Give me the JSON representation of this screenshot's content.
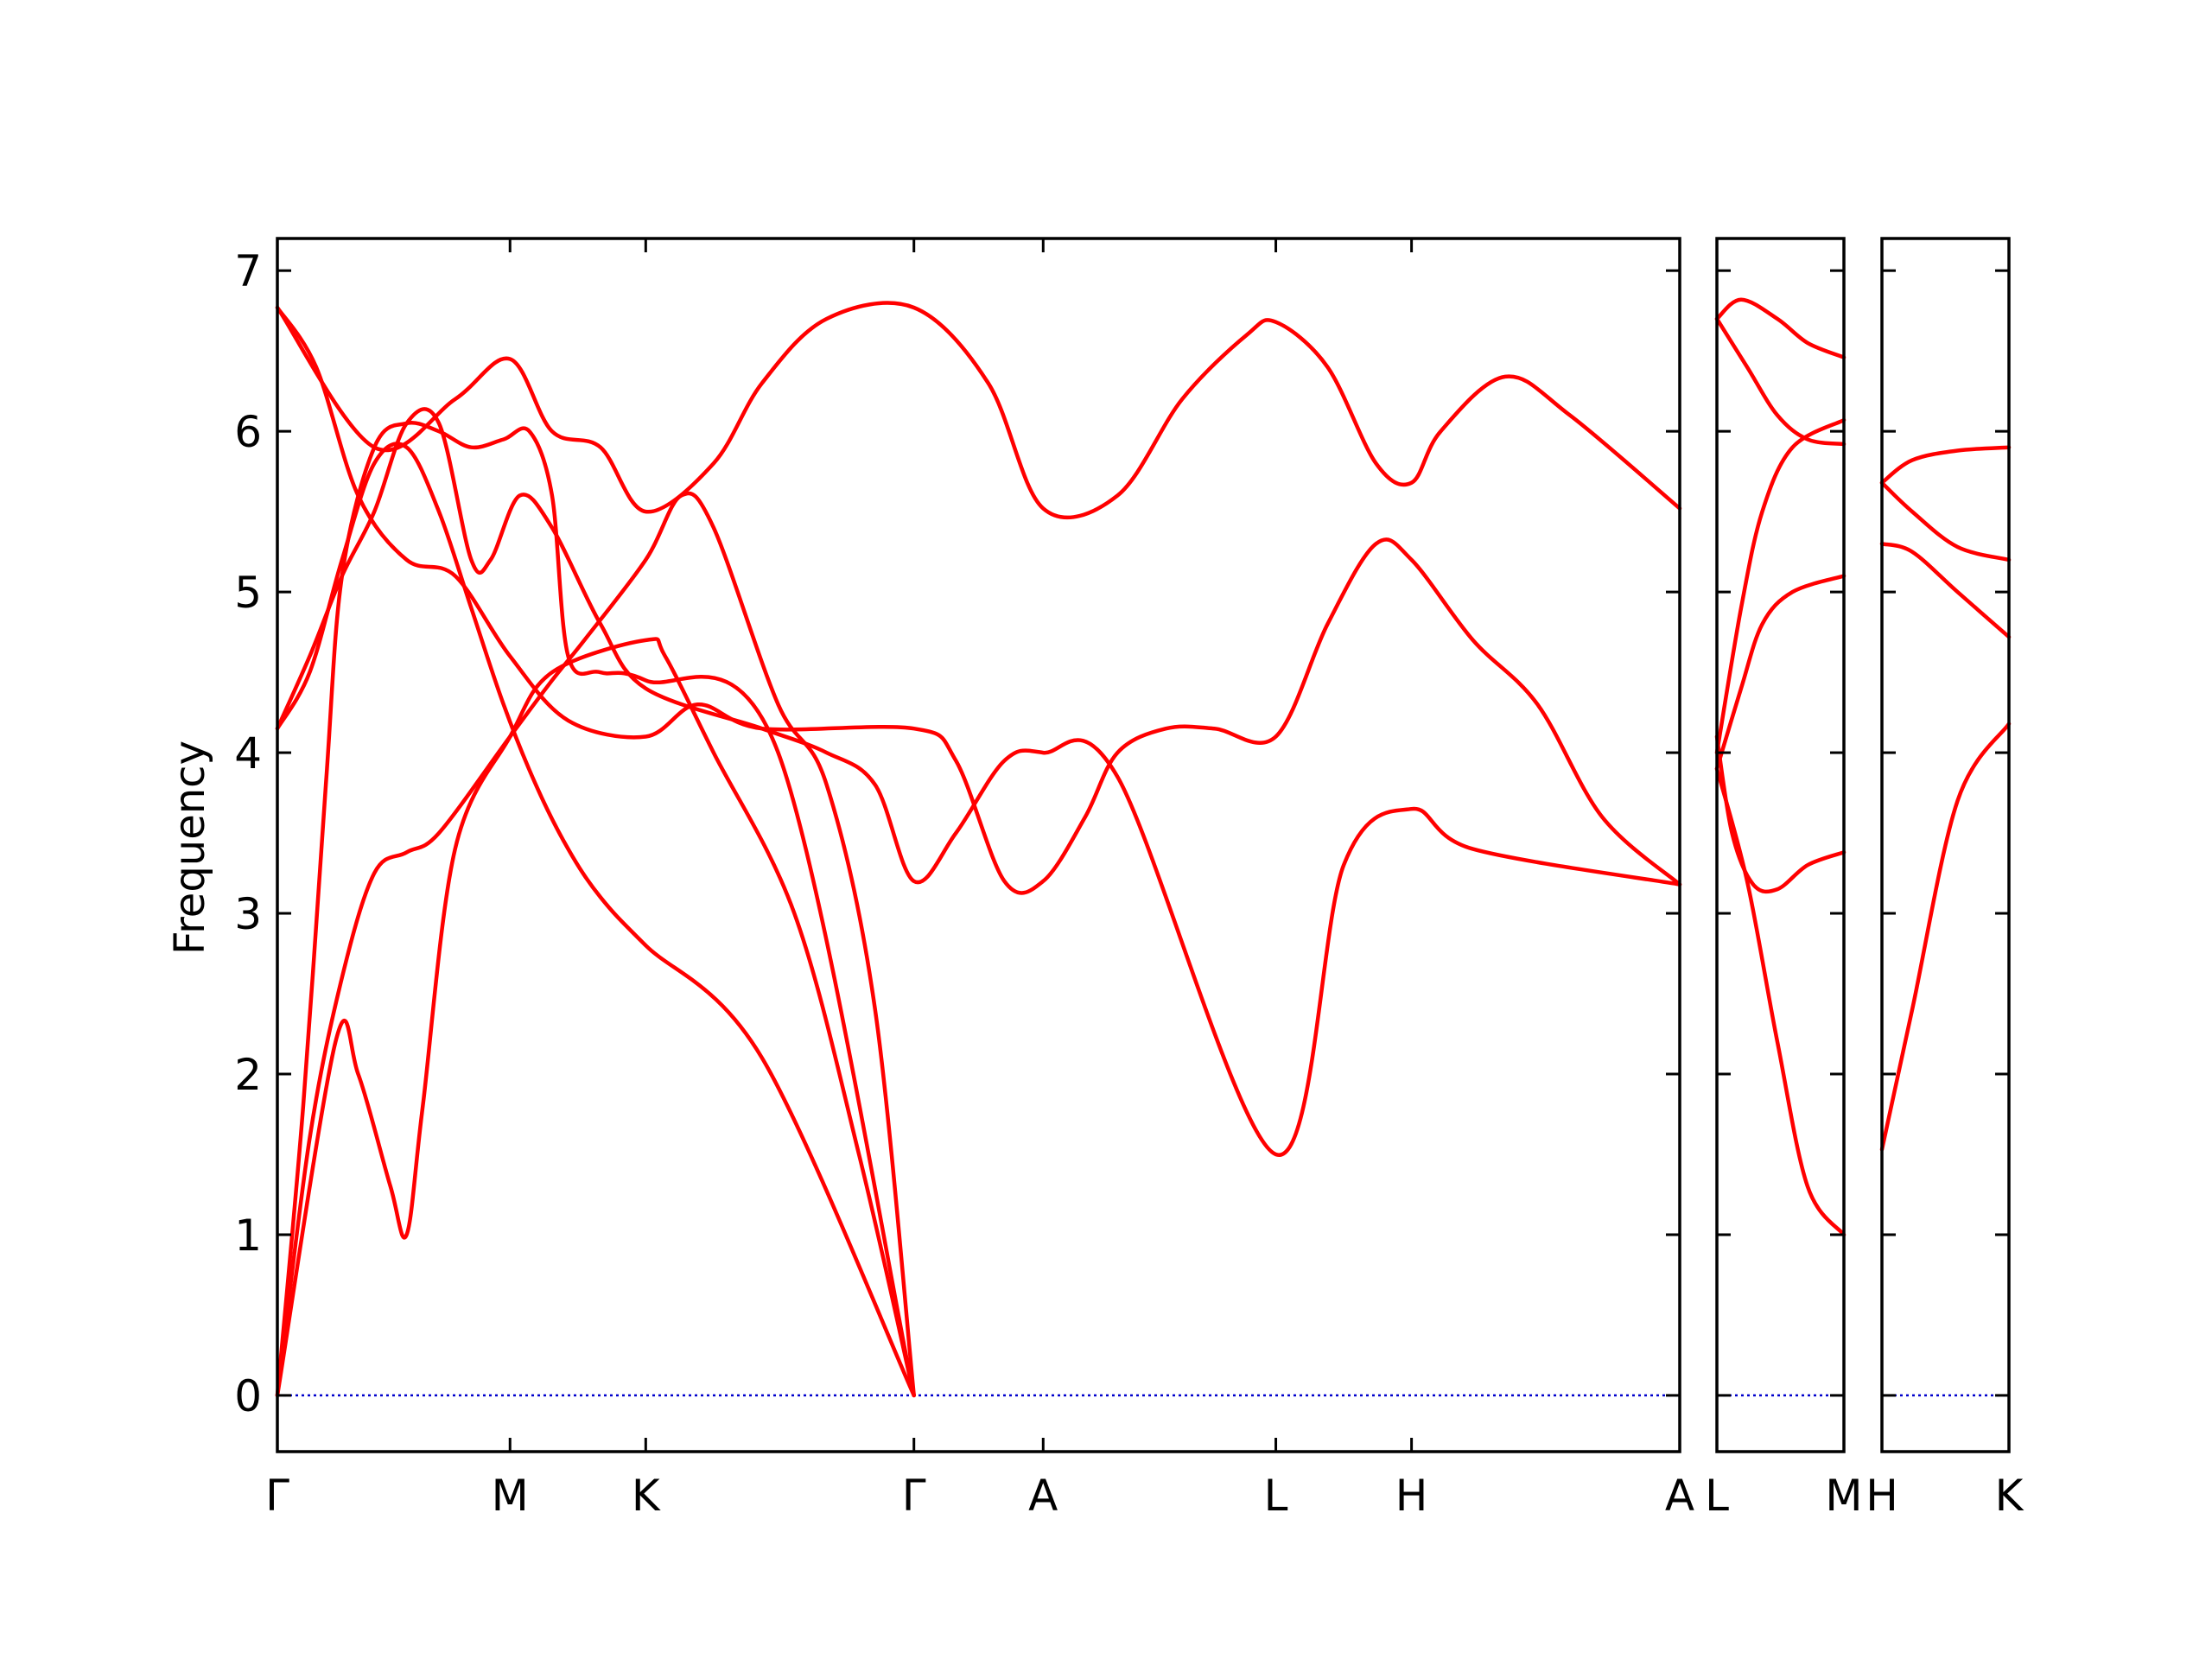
{
  "colors": {
    "bands": "#ff0000",
    "zero_line": "#0000cc",
    "axes": "#000000"
  },
  "chart_data": {
    "type": "line",
    "title": "",
    "ylabel": "Frequency",
    "ylim": [
      -0.35,
      7.2
    ],
    "yticks": [
      0,
      1,
      2,
      3,
      4,
      5,
      6,
      7
    ],
    "zero_line": true,
    "grid": false,
    "panels": [
      {
        "xlim": [
          0,
          4.34
        ],
        "ticks": [
          {
            "label": "Γ",
            "x": 0
          },
          {
            "label": "M",
            "x": 0.72
          },
          {
            "label": "K",
            "x": 1.14
          },
          {
            "label": "Γ",
            "x": 1.97
          },
          {
            "label": "A",
            "x": 2.37
          },
          {
            "label": "L",
            "x": 3.09
          },
          {
            "label": "H",
            "x": 3.51
          },
          {
            "label": "A",
            "x": 4.34
          }
        ],
        "series": [
          {
            "points": [
              [
                0,
                0
              ],
              [
                0.18,
                2.2
              ],
              [
                0.25,
                2.0
              ],
              [
                0.35,
                1.3
              ],
              [
                0.4,
                1.0
              ],
              [
                0.45,
                1.8
              ],
              [
                0.55,
                3.4
              ],
              [
                0.72,
                4.1
              ],
              [
                0.85,
                4.5
              ],
              [
                1.14,
                4.7
              ],
              [
                1.2,
                4.6
              ],
              [
                1.35,
                4.0
              ],
              [
                1.6,
                3.0
              ],
              [
                1.8,
                1.5
              ],
              [
                1.97,
                0
              ]
            ]
          },
          {
            "points": [
              [
                0,
                0
              ],
              [
                0.1,
                1.6
              ],
              [
                0.2,
                2.6
              ],
              [
                0.3,
                3.25
              ],
              [
                0.4,
                3.38
              ],
              [
                0.5,
                3.5
              ],
              [
                0.72,
                4.1
              ],
              [
                0.85,
                4.45
              ],
              [
                0.95,
                4.7
              ],
              [
                1.14,
                5.2
              ],
              [
                1.25,
                5.6
              ],
              [
                1.35,
                5.4
              ],
              [
                1.55,
                4.3
              ],
              [
                1.7,
                3.8
              ],
              [
                1.85,
                2.4
              ],
              [
                1.97,
                0
              ]
            ]
          },
          {
            "points": [
              [
                0,
                0
              ],
              [
                0.08,
                1.8
              ],
              [
                0.15,
                3.8
              ],
              [
                0.2,
                5.1
              ],
              [
                0.3,
                5.9
              ],
              [
                0.4,
                6.05
              ],
              [
                0.5,
                6.0
              ],
              [
                0.6,
                5.9
              ],
              [
                0.7,
                5.95
              ],
              [
                0.78,
                6.0
              ],
              [
                0.85,
                5.6
              ],
              [
                0.9,
                4.6
              ],
              [
                1.0,
                4.5
              ],
              [
                1.14,
                4.45
              ],
              [
                1.55,
                4.0
              ],
              [
                1.97,
                0
              ]
            ]
          },
          {
            "points": [
              [
                0,
                4.15
              ],
              [
                0.1,
                4.5
              ],
              [
                0.2,
                5.2
              ],
              [
                0.3,
                5.8
              ],
              [
                0.4,
                5.9
              ],
              [
                0.5,
                5.5
              ],
              [
                0.6,
                4.9
              ],
              [
                0.7,
                4.3
              ],
              [
                0.8,
                3.8
              ],
              [
                0.9,
                3.4
              ],
              [
                1.0,
                3.1
              ],
              [
                1.14,
                2.8
              ],
              [
                1.5,
                2.1
              ],
              [
                1.97,
                0
              ]
            ]
          },
          {
            "points": [
              [
                0,
                4.15
              ],
              [
                0.1,
                4.6
              ],
              [
                0.2,
                5.1
              ],
              [
                0.3,
                5.5
              ],
              [
                0.4,
                6.05
              ],
              [
                0.5,
                6.05
              ],
              [
                0.6,
                5.2
              ],
              [
                0.66,
                5.2
              ],
              [
                0.75,
                5.6
              ],
              [
                0.85,
                5.4
              ],
              [
                1.0,
                4.8
              ],
              [
                1.14,
                4.4
              ],
              [
                1.5,
                4.15
              ],
              [
                1.7,
                4.0
              ],
              [
                1.85,
                3.8
              ],
              [
                1.97,
                3.2
              ],
              [
                2.1,
                3.5
              ],
              [
                2.25,
                3.95
              ],
              [
                2.37,
                4.0
              ],
              [
                2.6,
                3.85
              ],
              [
                3.09,
                1.5
              ],
              [
                3.3,
                3.3
              ],
              [
                3.51,
                3.65
              ],
              [
                3.7,
                3.4
              ],
              [
                4.34,
                3.18
              ]
            ]
          },
          {
            "points": [
              [
                0,
                6.77
              ],
              [
                0.12,
                6.4
              ],
              [
                0.25,
                5.6
              ],
              [
                0.4,
                5.2
              ],
              [
                0.55,
                5.1
              ],
              [
                0.72,
                4.6
              ],
              [
                0.9,
                4.2
              ],
              [
                1.14,
                4.1
              ],
              [
                1.3,
                4.3
              ],
              [
                1.5,
                4.15
              ],
              [
                1.97,
                4.15
              ],
              [
                2.1,
                3.95
              ],
              [
                2.25,
                3.2
              ],
              [
                2.37,
                3.2
              ],
              [
                2.5,
                3.6
              ],
              [
                2.6,
                4.0
              ],
              [
                2.75,
                4.15
              ],
              [
                2.9,
                4.15
              ],
              [
                3.09,
                4.1
              ],
              [
                3.25,
                4.8
              ],
              [
                3.4,
                5.3
              ],
              [
                3.51,
                5.2
              ],
              [
                3.7,
                4.7
              ],
              [
                3.9,
                4.3
              ],
              [
                4.1,
                3.6
              ],
              [
                4.34,
                3.18
              ]
            ]
          },
          {
            "points": [
              [
                0,
                6.77
              ],
              [
                0.3,
                5.9
              ],
              [
                0.55,
                6.2
              ],
              [
                0.72,
                6.45
              ],
              [
                0.85,
                6.0
              ],
              [
                1.0,
                5.9
              ],
              [
                1.14,
                5.5
              ],
              [
                1.35,
                5.8
              ],
              [
                1.5,
                6.3
              ],
              [
                1.7,
                6.7
              ],
              [
                1.97,
                6.77
              ],
              [
                2.2,
                6.3
              ],
              [
                2.37,
                5.52
              ],
              [
                2.6,
                5.6
              ],
              [
                2.8,
                6.2
              ],
              [
                3.0,
                6.6
              ],
              [
                3.09,
                6.68
              ],
              [
                3.25,
                6.4
              ],
              [
                3.4,
                5.8
              ],
              [
                3.51,
                5.68
              ],
              [
                3.6,
                6.0
              ],
              [
                3.8,
                6.34
              ],
              [
                4.0,
                6.1
              ],
              [
                4.34,
                5.52
              ]
            ]
          }
        ]
      },
      {
        "xlim": [
          0,
          0.42
        ],
        "ticks": [
          {
            "label": "L",
            "x": 0
          },
          {
            "label": "M",
            "x": 0.42
          }
        ],
        "series": [
          {
            "points": [
              [
                0,
                6.7
              ],
              [
                0.08,
                6.82
              ],
              [
                0.2,
                6.7
              ],
              [
                0.3,
                6.55
              ],
              [
                0.42,
                6.46
              ]
            ]
          },
          {
            "points": [
              [
                0,
                6.7
              ],
              [
                0.1,
                6.4
              ],
              [
                0.2,
                6.1
              ],
              [
                0.3,
                5.95
              ],
              [
                0.42,
                5.92
              ]
            ]
          },
          {
            "points": [
              [
                0,
                4.0
              ],
              [
                0.08,
                4.9
              ],
              [
                0.15,
                5.5
              ],
              [
                0.25,
                5.9
              ],
              [
                0.42,
                6.07
              ]
            ]
          },
          {
            "points": [
              [
                0,
                3.9
              ],
              [
                0.08,
                4.4
              ],
              [
                0.15,
                4.8
              ],
              [
                0.25,
                5.0
              ],
              [
                0.42,
                5.1
              ]
            ]
          },
          {
            "points": [
              [
                0,
                4.1
              ],
              [
                0.05,
                3.5
              ],
              [
                0.12,
                3.18
              ],
              [
                0.2,
                3.15
              ],
              [
                0.3,
                3.3
              ],
              [
                0.42,
                3.38
              ]
            ]
          },
          {
            "points": [
              [
                0,
                3.9
              ],
              [
                0.1,
                3.2
              ],
              [
                0.2,
                2.2
              ],
              [
                0.3,
                1.3
              ],
              [
                0.42,
                1.0
              ]
            ]
          }
        ]
      },
      {
        "xlim": [
          0,
          0.42
        ],
        "ticks": [
          {
            "label": "H",
            "x": 0
          },
          {
            "label": "K",
            "x": 0.42
          }
        ],
        "series": [
          {
            "points": [
              [
                0,
                5.68
              ],
              [
                0.1,
                5.82
              ],
              [
                0.25,
                5.88
              ],
              [
                0.42,
                5.9
              ]
            ]
          },
          {
            "points": [
              [
                0,
                5.68
              ],
              [
                0.1,
                5.5
              ],
              [
                0.25,
                5.28
              ],
              [
                0.42,
                5.2
              ]
            ]
          },
          {
            "points": [
              [
                0,
                5.3
              ],
              [
                0.1,
                5.25
              ],
              [
                0.25,
                5.0
              ],
              [
                0.42,
                4.72
              ]
            ]
          },
          {
            "points": [
              [
                0,
                1.53
              ],
              [
                0.1,
                2.4
              ],
              [
                0.25,
                3.7
              ],
              [
                0.42,
                4.18
              ]
            ]
          }
        ]
      }
    ]
  }
}
